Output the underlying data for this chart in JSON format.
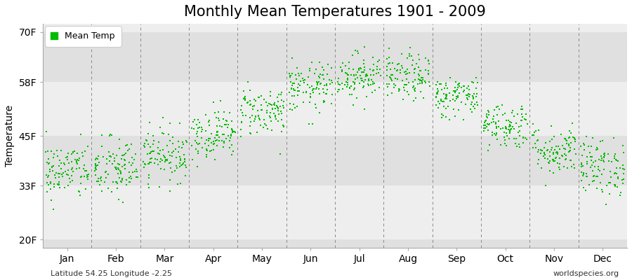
{
  "title": "Monthly Mean Temperatures 1901 - 2009",
  "ylabel": "Temperature",
  "ytick_labels": [
    "20F",
    "33F",
    "45F",
    "58F",
    "70F"
  ],
  "ytick_values": [
    20,
    33,
    45,
    58,
    70
  ],
  "ylim": [
    18,
    72
  ],
  "months": [
    "Jan",
    "Feb",
    "Mar",
    "Apr",
    "May",
    "Jun",
    "Jul",
    "Aug",
    "Sep",
    "Oct",
    "Nov",
    "Dec"
  ],
  "dot_color": "#00BB00",
  "dot_size": 3,
  "bg_color": "#E8E8E8",
  "bg_band_light": "#EEEEEE",
  "bg_band_dark": "#E0E0E0",
  "fig_bg_color": "#FFFFFF",
  "legend_label": "Mean Temp",
  "bottom_left": "Latitude 54.25 Longitude -2.25",
  "bottom_right": "worldspecies.org",
  "mean_temps_F": [
    36.5,
    37.0,
    40.5,
    45.5,
    51.0,
    56.5,
    59.5,
    59.0,
    54.5,
    47.5,
    41.5,
    37.5
  ],
  "std_temps_F": [
    3.5,
    3.8,
    3.2,
    3.0,
    3.0,
    3.0,
    2.8,
    2.8,
    2.5,
    2.8,
    3.0,
    3.5
  ],
  "n_years": 109,
  "title_fontsize": 15,
  "axis_fontsize": 10,
  "tick_fontsize": 10,
  "annotation_fontsize": 8,
  "legend_fontsize": 9
}
